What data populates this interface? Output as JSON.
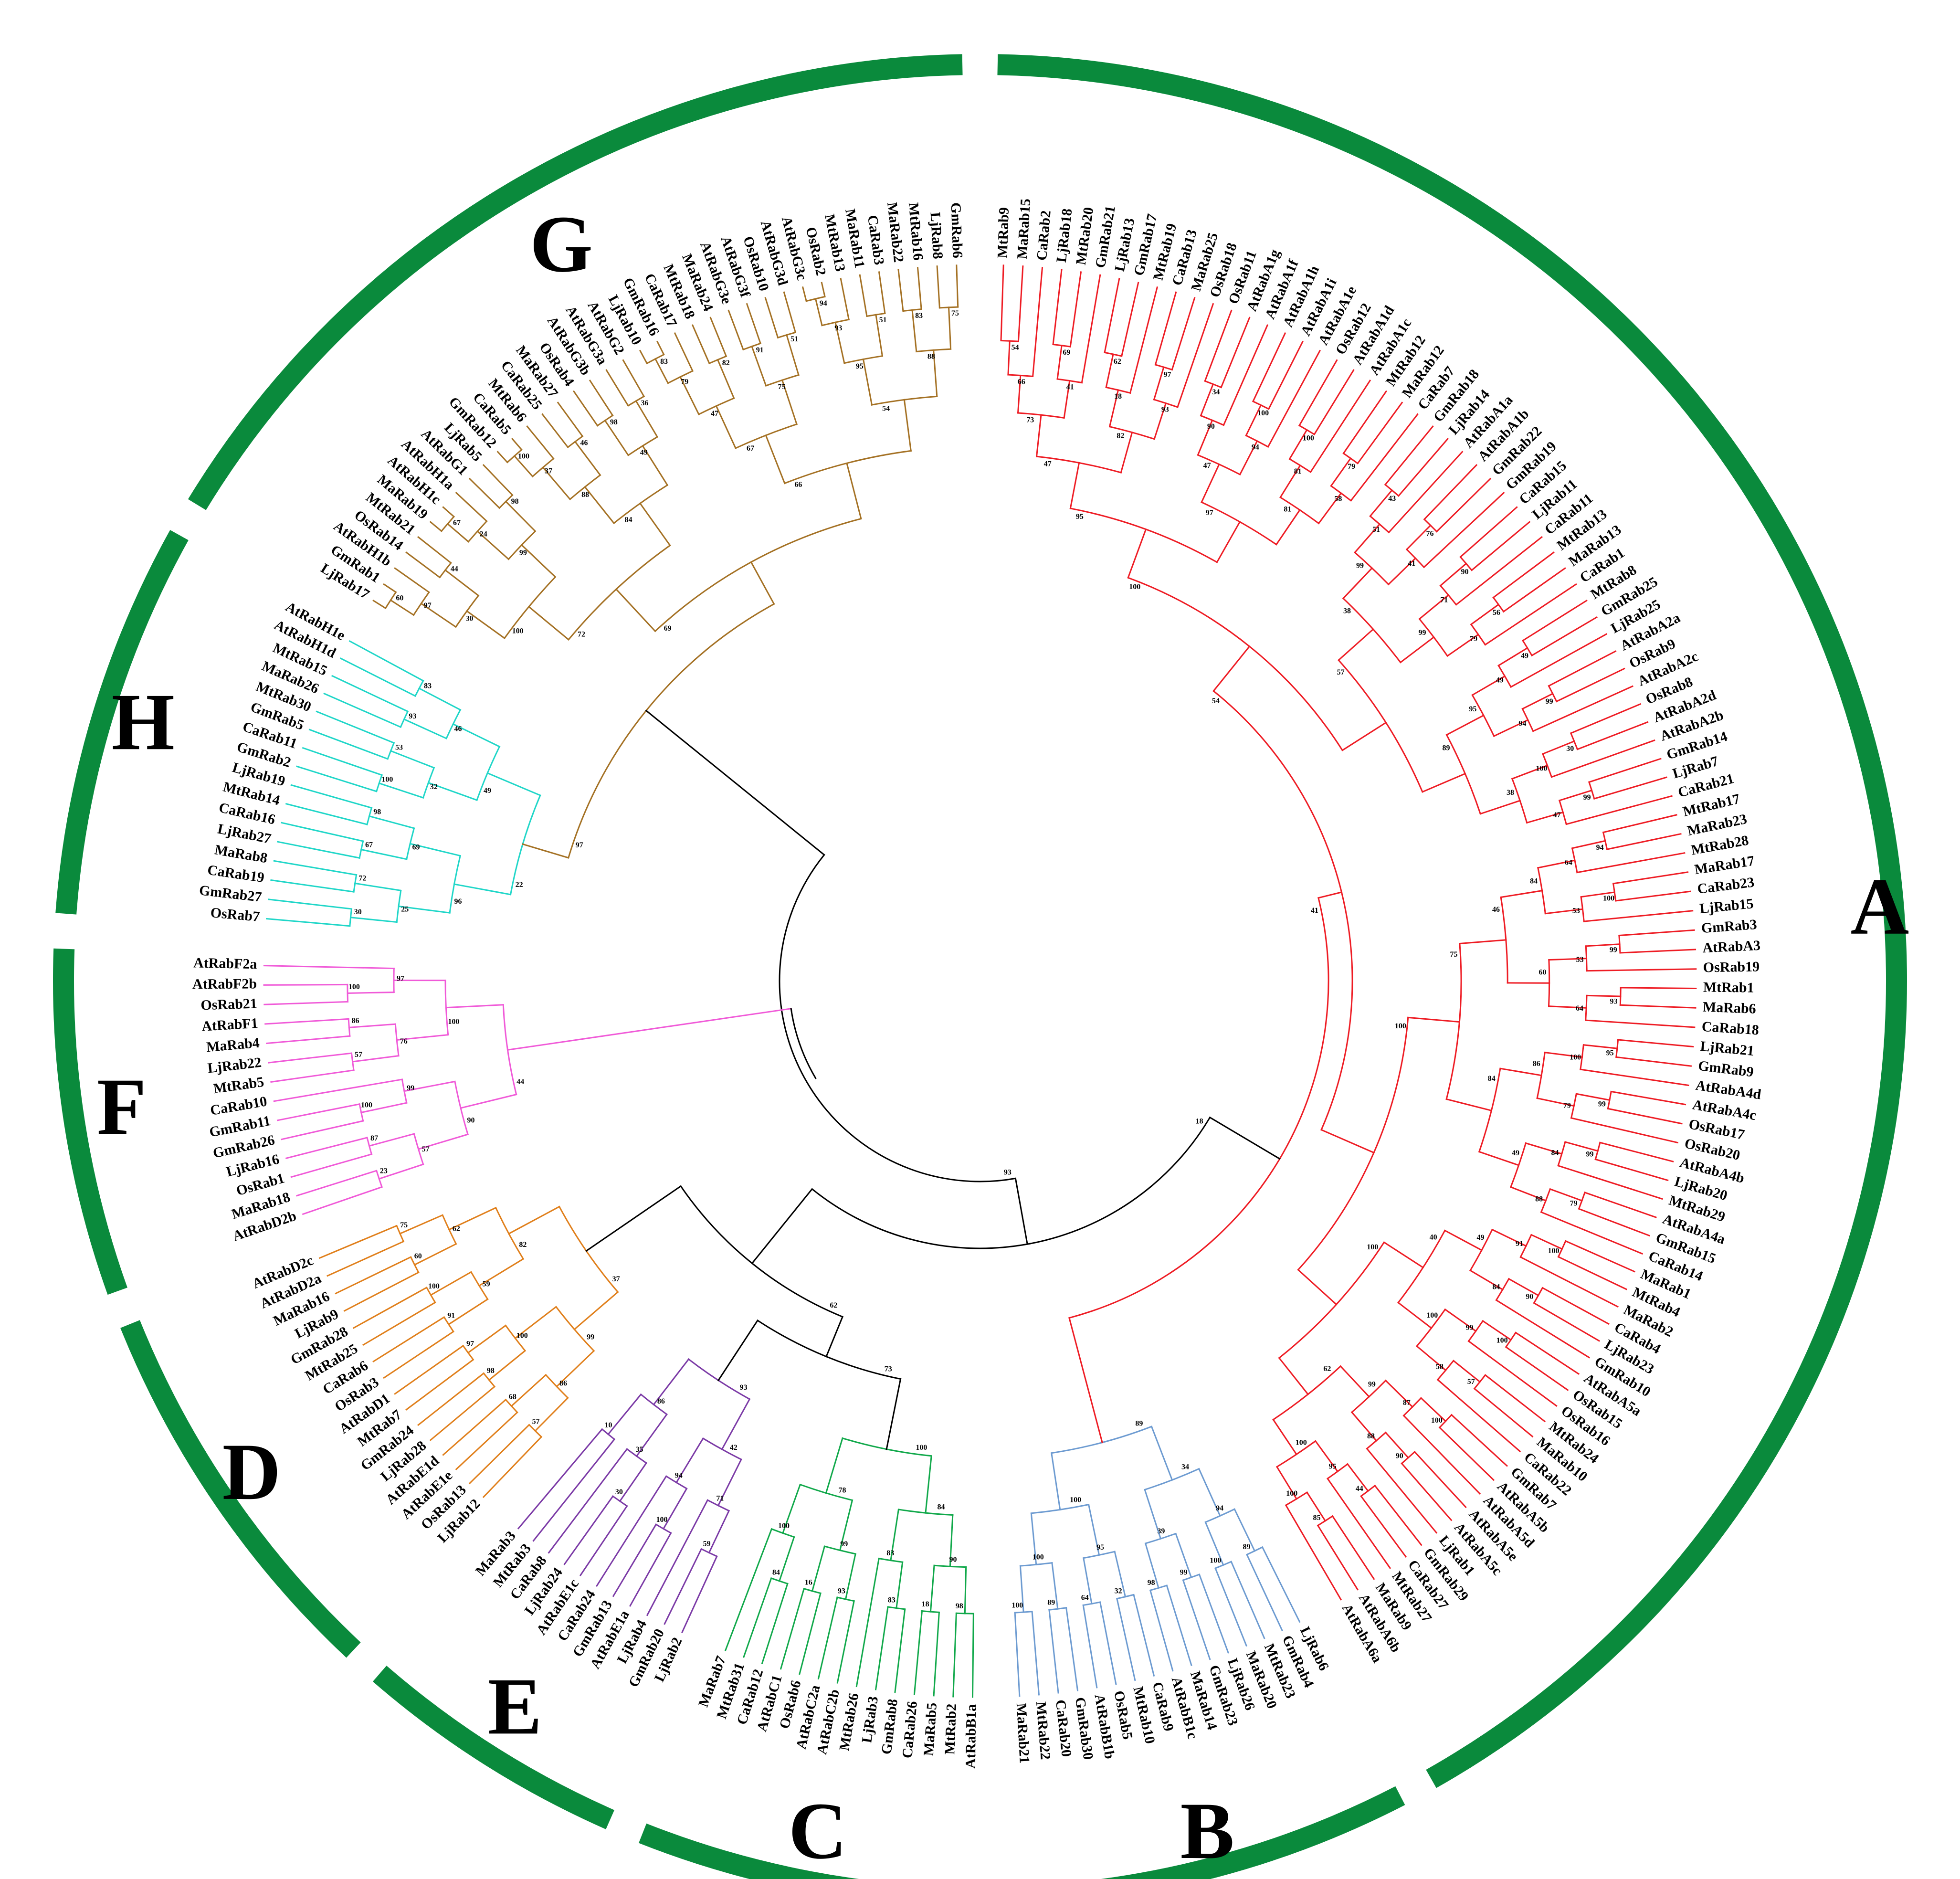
{
  "colors": {
    "band": "#0a8a3c",
    "backbone": "#000000",
    "A": "#ee1c24",
    "B": "#6d9bd1",
    "C": "#10a84a",
    "D": "#e07f1b",
    "E": "#7b3aa6",
    "F": "#f05ad8",
    "G": "#a47124",
    "H": "#1fd6c8"
  },
  "leaf_labels_clockwise_from_top": [
    "MtRab9",
    "MaRab15",
    "CaRab2",
    "LjRab18",
    "MtRab20",
    "GmRab21",
    "LjRab13",
    "GmRab17",
    "MtRab19",
    "CaRab13",
    "MaRab25",
    "OsRab18",
    "OsRab11",
    "AtRabA1g",
    "AtRabA1f",
    "AtRabA1h",
    "AtRabA1i",
    "AtRabA1e",
    "OsRab12",
    "AtRabA1d",
    "AtRabA1c",
    "MtRab12",
    "MaRab12",
    "CaRab7",
    "GmRab18",
    "LjRab14",
    "AtRabA1a",
    "AtRabA1b",
    "GmRab22",
    "GmRab19",
    "CaRab15",
    "LjRab11",
    "CaRab11",
    "MtRab13",
    "MaRab13",
    "CaRab1",
    "MtRab8",
    "GmRab25",
    "LjRab25",
    "AtRabA2a",
    "OsRab9",
    "AtRabA2c",
    "OsRab8",
    "AtRabA2d",
    "AtRabA2b",
    "GmRab14",
    "LjRab7",
    "CaRab21",
    "MtRab17",
    "MaRab23",
    "MtRab28",
    "MaRab17",
    "CaRab23",
    "LjRab15",
    "GmRab3",
    "AtRabA3",
    "OsRab19",
    "MtRab1",
    "MaRab6",
    "CaRab18",
    "LjRab21",
    "GmRab9",
    "AtRabA4d",
    "AtRabA4c",
    "OsRab17",
    "OsRab20",
    "AtRabA4b",
    "LjRab20",
    "MtRab29",
    "AtRabA4a",
    "GmRab15",
    "CaRab14",
    "MaRab1",
    "MtRab4",
    "MaRab2",
    "CaRab4",
    "LjRab23",
    "GmRab10",
    "AtRabA5a",
    "OsRab15",
    "OsRab16",
    "MtRab24",
    "MaRab10",
    "CaRab22",
    "GmRab7",
    "AtRabA5b",
    "AtRabA5d",
    "AtRabA5e",
    "AtRabA5c",
    "LjRab1",
    "GmRab29",
    "CaRab27",
    "MtRab27",
    "MaRab9",
    "AtRabA6b",
    "AtRabA6a",
    "LjRab6",
    "GmRab4",
    "MtRab23",
    "MaRab20",
    "LjRab26",
    "GmRab23",
    "MaRab14",
    "AtRabB1c",
    "CaRab9",
    "MtRab10",
    "OsRab5",
    "AtRabB1b",
    "GmRab30",
    "CaRab20",
    "MtRab22",
    "MaRab21",
    "AtRabB1a",
    "MtRab2",
    "MaRab5",
    "CaRab26",
    "GmRab8",
    "LjRab3",
    "MtRab26",
    "AtRabC2b",
    "AtRabC2a",
    "OsRab6",
    "AtRabC1",
    "CaRab12",
    "MtRab31",
    "MaRab7",
    "LjRab2",
    "GmRab20",
    "LjRab4",
    "AtRabE1a",
    "GmRab13",
    "CaRab24",
    "AtRabE1c",
    "LjRab24",
    "CaRab8",
    "MtRab3",
    "MaRab3",
    "LjRab12",
    "OsRab13",
    "AtRabE1e",
    "AtRabE1d",
    "LjRab28",
    "GmRab24",
    "MtRab7",
    "AtRabD1",
    "OsRab3",
    "CaRab6",
    "MtRab25",
    "GmRab28",
    "LjRab9",
    "MaRab16",
    "AtRabD2a",
    "AtRabD2c",
    "AtRabD2b",
    "MaRab18",
    "OsRab1",
    "LjRab16",
    "GmRab26",
    "GmRab11",
    "CaRab10",
    "MtRab5",
    "LjRab22",
    "MaRab4",
    "AtRabF1",
    "OsRab21",
    "AtRabF2b",
    "AtRabF2a",
    "OsRab7",
    "GmRab27",
    "CaRab19",
    "MaRab8",
    "LjRab27",
    "CaRab16",
    "MtRab14",
    "LjRab19",
    "GmRab2",
    "CaRab11",
    "GmRab5",
    "MtRab30",
    "MaRab26",
    "MtRab15",
    "AtRabH1d",
    "AtRabH1e",
    "LjRab17",
    "GmRab1",
    "AtRabH1b",
    "OsRab14",
    "MtRab21",
    "MaRab19",
    "AtRabH1c",
    "AtRabH1a",
    "AtRabG1",
    "LjRab5",
    "GmRab12",
    "CaRab5",
    "MtRab6",
    "CaRab25",
    "MaRab27",
    "OsRab4",
    "AtRabG3b",
    "AtRabG3a",
    "AtRabG2",
    "LjRab10",
    "GmRab16",
    "CaRab17",
    "MtRab18",
    "MaRab24",
    "AtRabG3e",
    "AtRabG3f",
    "OsRab10",
    "AtRabG3d",
    "AtRabG3c",
    "OsRab2",
    "MtRab13",
    "MaRab11",
    "CaRab3",
    "MaRab22",
    "MtRab16",
    "LjRab8",
    "GmRab6"
  ],
  "clades": [
    {
      "label": "A",
      "from": "MtRab9",
      "to": "AtRabA6a"
    },
    {
      "label": "B",
      "from": "LjRab6",
      "to": "AtRabB1a"
    },
    {
      "label": "C",
      "from": "MtRab2",
      "to": "GmRab20"
    },
    {
      "label": "E",
      "from": "LjRab4",
      "to": "AtRabE1e"
    },
    {
      "label": "D",
      "from": "AtRabE1d",
      "to": "GmRab11"
    },
    {
      "label": "F",
      "from": "CaRab10",
      "to": "MtRab14"
    },
    {
      "label": "H",
      "from": "LjRab19",
      "to": "AtRabH1a"
    },
    {
      "label": "G",
      "from": "AtRabG1",
      "to": "GmRab6"
    }
  ],
  "bootstrap_values": [
    "54",
    "66",
    "69",
    "41",
    "73",
    "62",
    "18",
    "97",
    "93",
    "82",
    "47",
    "34",
    "90",
    "100",
    "94",
    "47",
    "100",
    "81",
    "79",
    "58",
    "81",
    "97",
    "95",
    "43",
    "51",
    "76",
    "41",
    "99",
    "90",
    "71",
    "56",
    "79",
    "99",
    "38",
    "49",
    "49",
    "99",
    "94",
    "95",
    "30",
    "100",
    "99",
    "47",
    "38",
    "89",
    "57",
    "100",
    "94",
    "64",
    "100",
    "53",
    "84",
    "99",
    "53",
    "93",
    "64",
    "60",
    "46",
    "95",
    "100",
    "99",
    "79",
    "86",
    "99",
    "84",
    "79",
    "88",
    "49",
    "84",
    "75",
    "100",
    "91",
    "90",
    "84",
    "49",
    "100",
    "99",
    "57",
    "58",
    "100",
    "40",
    "100",
    "87",
    "90",
    "88",
    "99",
    "44",
    "95",
    "85",
    "100",
    "100",
    "62",
    "100",
    "100",
    "54",
    "89",
    "100",
    "94",
    "99",
    "98",
    "39",
    "34",
    "32",
    "64",
    "95",
    "89",
    "100",
    "100",
    "100",
    "89",
    "98",
    "18",
    "90",
    "83",
    "83",
    "84",
    "93",
    "16",
    "99",
    "84",
    "100",
    "78",
    "100",
    "59",
    "71",
    "100",
    "94",
    "42",
    "30",
    "35",
    "10",
    "86",
    "93",
    "57",
    "68",
    "86",
    "98",
    "97",
    "100",
    "99",
    "91",
    "100",
    "59",
    "60",
    "75",
    "62",
    "82",
    "37",
    "23",
    "87",
    "57",
    "100",
    "99",
    "90",
    "57",
    "86",
    "76",
    "100",
    "97",
    "100",
    "44",
    "30",
    "72",
    "25",
    "67",
    "98",
    "69",
    "96",
    "100",
    "53",
    "32",
    "93",
    "83",
    "46",
    "49",
    "22",
    "60",
    "97",
    "44",
    "30",
    "67",
    "24",
    "98",
    "99",
    "100",
    "100",
    "37",
    "46",
    "88",
    "98",
    "36",
    "49",
    "84",
    "72",
    "83",
    "79",
    "82",
    "47",
    "91",
    "51",
    "75",
    "67",
    "94",
    "93",
    "51",
    "95",
    "83",
    "75",
    "88"
  ]
}
